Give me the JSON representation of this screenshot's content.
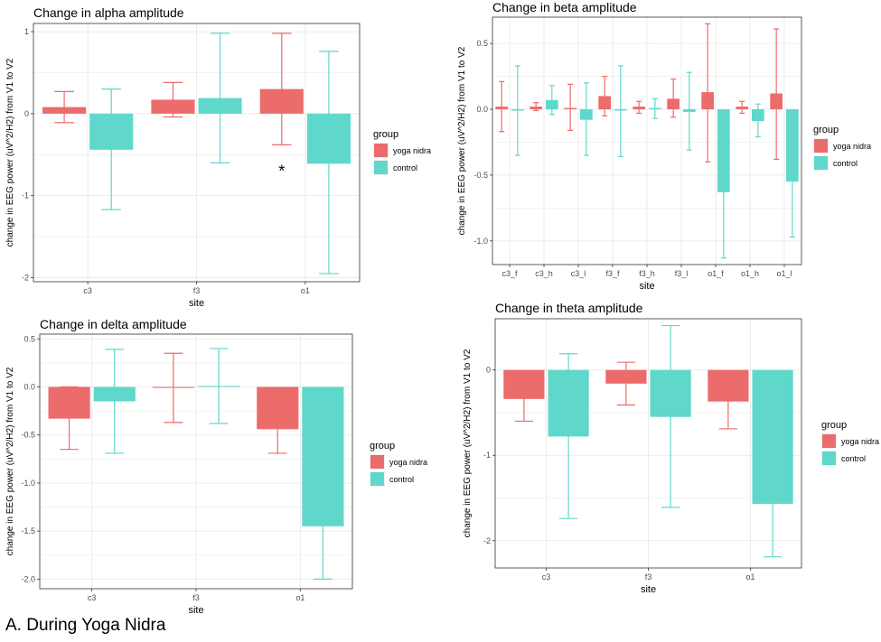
{
  "colors": {
    "yoga_nidra": "#ec6b6b",
    "control": "#5fd8cb",
    "grid": "#ebebeb",
    "panel_border": "#333333"
  },
  "legend": {
    "title": "group",
    "items": [
      "yoga nidra",
      "control"
    ]
  },
  "caption": "A. During Yoga Nidra",
  "chart_data": [
    {
      "type": "bar",
      "title": "Change in alpha amplitude",
      "xlabel": "site",
      "ylabel": "change in EEG power (uV^2/H2) from V1 to V2",
      "categories": [
        "c3",
        "f3",
        "o1"
      ],
      "ylim": [
        -2.05,
        1.1
      ],
      "yticks": [
        -2,
        -1,
        0,
        1
      ],
      "ytick_labels": [
        "-2",
        "-1",
        "0",
        "1"
      ],
      "series": [
        {
          "name": "yoga nidra",
          "values": [
            0.08,
            0.17,
            0.3
          ],
          "err_low": [
            -0.11,
            -0.04,
            -0.38
          ],
          "err_high": [
            0.27,
            0.38,
            0.98
          ]
        },
        {
          "name": "control",
          "values": [
            -0.44,
            0.19,
            -0.61
          ],
          "err_low": [
            -1.17,
            -0.6,
            -1.95
          ],
          "err_high": [
            0.3,
            0.98,
            0.76
          ]
        }
      ],
      "annotations": [
        {
          "text": "*",
          "category": "o1",
          "value": -0.68
        }
      ]
    },
    {
      "type": "bar",
      "title": "Change in beta amplitude",
      "xlabel": "site",
      "ylabel": "change in EEG power (uV^2/H2) from V1 to V2",
      "categories": [
        "c3_f",
        "c3_h",
        "c3_l",
        "f3_f",
        "f3_h",
        "f3_l",
        "o1_f",
        "o1_h",
        "o1_l"
      ],
      "ylim": [
        -1.18,
        0.7
      ],
      "yticks": [
        -1.0,
        -0.5,
        0.0,
        0.5
      ],
      "ytick_labels": [
        "-1.0",
        "-0.5",
        "0.0",
        "0.5"
      ],
      "series": [
        {
          "name": "yoga nidra",
          "values": [
            0.02,
            0.02,
            0.01,
            0.1,
            0.02,
            0.08,
            0.13,
            0.02,
            0.12
          ],
          "err_low": [
            -0.17,
            -0.01,
            -0.16,
            -0.05,
            -0.03,
            -0.06,
            -0.4,
            -0.03,
            -0.38
          ],
          "err_high": [
            0.21,
            0.05,
            0.19,
            0.25,
            0.06,
            0.23,
            0.65,
            0.06,
            0.61
          ]
        },
        {
          "name": "control",
          "values": [
            -0.01,
            0.07,
            -0.08,
            -0.01,
            0.01,
            -0.02,
            -0.63,
            -0.09,
            -0.55
          ],
          "err_low": [
            -0.35,
            -0.04,
            -0.35,
            -0.36,
            -0.07,
            -0.31,
            -1.13,
            -0.21,
            -0.97
          ],
          "err_high": [
            0.33,
            0.18,
            0.2,
            0.33,
            0.08,
            0.28,
            -0.13,
            0.04,
            -0.12
          ]
        }
      ]
    },
    {
      "type": "bar",
      "title": "Change in delta amplitude",
      "xlabel": "site",
      "ylabel": "change in EEG power (uV^2/H2) from V1 to V2",
      "categories": [
        "c3",
        "f3",
        "o1"
      ],
      "ylim": [
        -2.1,
        0.55
      ],
      "yticks": [
        -2.0,
        -1.5,
        -1.0,
        -0.5,
        0.0,
        0.5
      ],
      "ytick_labels": [
        "-2.0",
        "-1.5",
        "-1.0",
        "-0.5",
        "0.0",
        "0.5"
      ],
      "series": [
        {
          "name": "yoga nidra",
          "values": [
            -0.33,
            -0.01,
            -0.44
          ],
          "err_low": [
            -0.65,
            -0.37,
            -0.69
          ],
          "err_high": [
            0.0,
            0.35,
            -0.18
          ]
        },
        {
          "name": "control",
          "values": [
            -0.15,
            0.01,
            -1.45
          ],
          "err_low": [
            -0.69,
            -0.38,
            -2.0
          ],
          "err_high": [
            0.39,
            0.4,
            -0.9
          ]
        }
      ]
    },
    {
      "type": "bar",
      "title": "Change in theta amplitude",
      "xlabel": "site",
      "ylabel": "change in EEG power (uV^2/H2) from V1 to V2",
      "categories": [
        "c3",
        "f3",
        "o1"
      ],
      "ylim": [
        -2.32,
        0.6
      ],
      "yticks": [
        -2,
        -1,
        0
      ],
      "ytick_labels": [
        "-2",
        "-1",
        "0"
      ],
      "series": [
        {
          "name": "yoga nidra",
          "values": [
            -0.34,
            -0.16,
            -0.37
          ],
          "err_low": [
            -0.6,
            -0.41,
            -0.69
          ],
          "err_high": [
            -0.08,
            0.09,
            -0.05
          ]
        },
        {
          "name": "control",
          "values": [
            -0.78,
            -0.55,
            -1.57
          ],
          "err_low": [
            -1.74,
            -1.61,
            -2.19
          ],
          "err_high": [
            0.19,
            0.52,
            -0.95
          ]
        }
      ]
    }
  ]
}
